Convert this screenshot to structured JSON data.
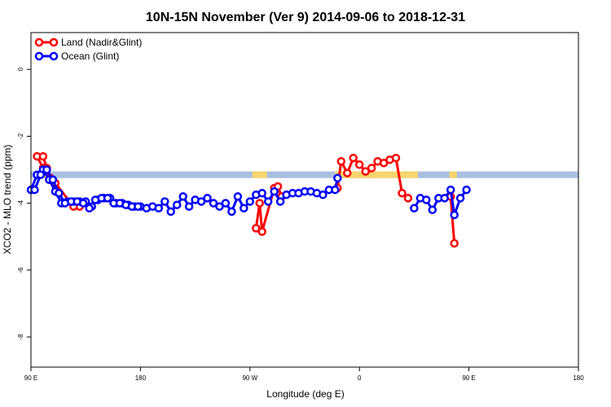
{
  "chart_data": {
    "type": "line",
    "title": "10N-15N November (Ver 9)   2014-09-06 to 2018-12-31",
    "xlabel": "Longitude (deg E)",
    "ylabel": "XCO2 - MLO trend (ppm)",
    "x_tick_labels": [
      "90 E",
      "180",
      "90 W",
      "0",
      "90 E",
      "180"
    ],
    "y_ticks": [
      0,
      -2,
      -4,
      -6,
      -8
    ],
    "ylim": [
      -8.9,
      1.1
    ],
    "grid": false,
    "legend_position": "top-left",
    "land_band": {
      "y_top": -3.05,
      "y_bottom": -3.25,
      "color": "#f6d56d",
      "ocean_color": "#aabfe0"
    },
    "colors": {
      "land": "#ff0000",
      "ocean": "#0000ff"
    },
    "series": [
      {
        "name": "Land (Nadir&Glint)",
        "color": "#ff0000",
        "points": [
          [
            95,
            -2.6
          ],
          [
            100,
            -2.95
          ],
          [
            105,
            -3.3
          ],
          [
            130,
            -4.1
          ],
          [
            -85,
            -4.75
          ],
          [
            -82,
            -4.0
          ],
          [
            -80,
            -4.85
          ],
          [
            -70,
            -3.55
          ],
          [
            -67,
            -3.5
          ],
          [
            -64,
            -3.8
          ],
          [
            -18,
            -3.55
          ],
          [
            -15,
            -2.75
          ],
          [
            -10,
            -3.1
          ],
          [
            -5,
            -2.65
          ],
          [
            0,
            -2.85
          ],
          [
            5,
            -3.05
          ],
          [
            10,
            -2.95
          ],
          [
            15,
            -2.75
          ],
          [
            20,
            -2.8
          ],
          [
            25,
            -2.7
          ],
          [
            30,
            -2.65
          ],
          [
            35,
            -3.7
          ],
          [
            40,
            -3.85
          ],
          [
            75,
            -3.8
          ],
          [
            78,
            -5.2
          ],
          [
            100,
            -2.6
          ],
          [
            103,
            -2.95
          ],
          [
            106,
            -3.25
          ],
          [
            110,
            -3.4
          ],
          [
            125,
            -4.1
          ]
        ]
      },
      {
        "name": "Ocean (Glint)",
        "color": "#0000ff",
        "points": [
          [
            90,
            -3.6
          ],
          [
            95,
            -3.15
          ],
          [
            100,
            -3.0
          ],
          [
            105,
            -3.3
          ],
          [
            110,
            -3.65
          ],
          [
            115,
            -4.0
          ],
          [
            120,
            -3.95
          ],
          [
            125,
            -3.95
          ],
          [
            130,
            -3.95
          ],
          [
            135,
            -3.95
          ],
          [
            140,
            -4.1
          ],
          [
            145,
            -3.9
          ],
          [
            150,
            -3.85
          ],
          [
            155,
            -3.85
          ],
          [
            160,
            -4.0
          ],
          [
            165,
            -4.0
          ],
          [
            170,
            -4.05
          ],
          [
            175,
            -4.1
          ],
          [
            180,
            -4.1
          ],
          [
            -175,
            -4.15
          ],
          [
            -170,
            -4.1
          ],
          [
            -165,
            -4.15
          ],
          [
            -160,
            -3.95
          ],
          [
            -155,
            -4.25
          ],
          [
            -150,
            -4.05
          ],
          [
            -145,
            -3.8
          ],
          [
            -140,
            -4.1
          ],
          [
            -135,
            -3.9
          ],
          [
            -130,
            -3.95
          ],
          [
            -125,
            -3.85
          ],
          [
            -120,
            -4.0
          ],
          [
            -115,
            -4.1
          ],
          [
            -110,
            -4.0
          ],
          [
            -105,
            -4.25
          ],
          [
            -100,
            -3.8
          ],
          [
            -95,
            -4.15
          ],
          [
            -90,
            -3.95
          ],
          [
            -85,
            -3.75
          ],
          [
            -80,
            -3.7
          ],
          [
            -75,
            -3.95
          ],
          [
            -70,
            -3.65
          ],
          [
            -65,
            -3.95
          ],
          [
            -60,
            -3.75
          ],
          [
            -55,
            -3.7
          ],
          [
            -50,
            -3.7
          ],
          [
            -45,
            -3.65
          ],
          [
            -40,
            -3.65
          ],
          [
            -35,
            -3.7
          ],
          [
            -30,
            -3.75
          ],
          [
            -25,
            -3.6
          ],
          [
            -20,
            -3.6
          ],
          [
            -18,
            -3.25
          ],
          [
            45,
            -4.15
          ],
          [
            50,
            -3.85
          ],
          [
            55,
            -3.9
          ],
          [
            60,
            -4.2
          ],
          [
            65,
            -3.85
          ],
          [
            70,
            -3.85
          ],
          [
            75,
            -3.6
          ],
          [
            78,
            -4.35
          ],
          [
            83,
            -3.85
          ],
          [
            88,
            -3.6
          ],
          [
            93,
            -3.6
          ],
          [
            98,
            -3.15
          ],
          [
            103,
            -3.0
          ],
          [
            108,
            -3.3
          ],
          [
            113,
            -3.7
          ],
          [
            118,
            -4.0
          ],
          [
            123,
            -3.95
          ],
          [
            128,
            -3.95
          ],
          [
            133,
            -4.0
          ],
          [
            138,
            -4.15
          ],
          [
            143,
            -3.9
          ],
          [
            148,
            -3.85
          ],
          [
            153,
            -3.85
          ],
          [
            158,
            -4.0
          ],
          [
            163,
            -4.0
          ],
          [
            168,
            -4.05
          ],
          [
            173,
            -4.1
          ],
          [
            178,
            -4.1
          ]
        ]
      }
    ]
  }
}
